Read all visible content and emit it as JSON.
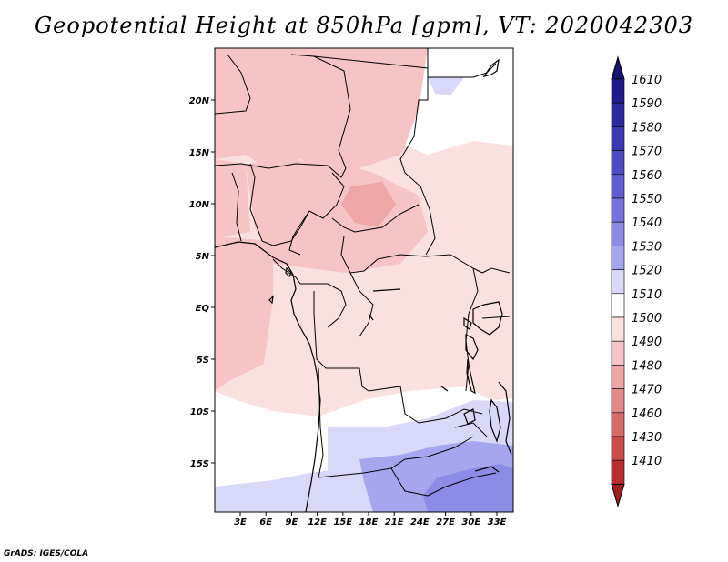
{
  "title": "Geopotential Height at 850hPa [gpm], VT: 2020042303",
  "credit": "GrADS: IGES/COLA",
  "map": {
    "lat_ticks": [
      "20N",
      "15N",
      "10N",
      "5N",
      "EQ",
      "5S",
      "10S",
      "15S"
    ],
    "lon_ticks": [
      "3E",
      "6E",
      "9E",
      "12E",
      "15E",
      "18E",
      "21E",
      "24E",
      "27E",
      "30E",
      "33E"
    ]
  },
  "colorbar": {
    "levels": [
      {
        "label": "1610",
        "color": "#1c1c8c"
      },
      {
        "label": "1590",
        "color": "#2a2aa0"
      },
      {
        "label": "1580",
        "color": "#3a3ab4"
      },
      {
        "label": "1570",
        "color": "#4c4cc4"
      },
      {
        "label": "1560",
        "color": "#5e5ed2"
      },
      {
        "label": "1550",
        "color": "#7474de"
      },
      {
        "label": "1540",
        "color": "#8c8ce6"
      },
      {
        "label": "1530",
        "color": "#a6a6ee"
      },
      {
        "label": "1520",
        "color": "#d8d8f8"
      },
      {
        "label": "1510",
        "color": "#ffffff"
      },
      {
        "label": "1500",
        "color": "#fbe0e0"
      },
      {
        "label": "1490",
        "color": "#f6c4c4"
      },
      {
        "label": "1480",
        "color": "#eea6a6"
      },
      {
        "label": "1470",
        "color": "#e48888"
      },
      {
        "label": "1460",
        "color": "#d86a6a"
      },
      {
        "label": "1430",
        "color": "#cc4c4c"
      },
      {
        "label": "1410",
        "color": "#b82e2e"
      }
    ],
    "top_color": "#151570",
    "bottom_color": "#a02020"
  }
}
